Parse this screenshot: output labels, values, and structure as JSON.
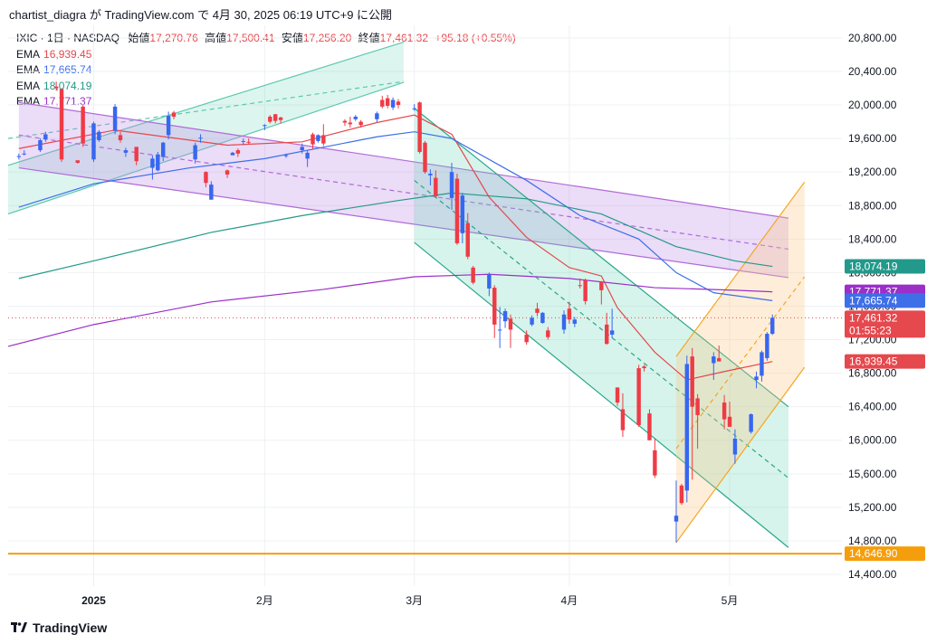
{
  "header": {
    "text": "chartist_diagra が TradingView.com で 4月 30, 2025 06:19 UTC+9 に公開"
  },
  "legend": {
    "symbol": "IXIC · 1日 · NASDAQ",
    "open_label": "始値",
    "open": "17,270.76",
    "high_label": "高値",
    "high": "17,500.41",
    "low_label": "安値",
    "low": "17,256.20",
    "close_label": "終値",
    "close": "17,461.32",
    "change": "+95.18 (+0.55%)",
    "ema_label": "EMA",
    "emas": [
      {
        "value": "16,939.45",
        "color": "#e5484d"
      },
      {
        "value": "17,665.74",
        "color": "#3d6fe8"
      },
      {
        "value": "18,074.19",
        "color": "#22998a"
      },
      {
        "value": "17,771.37",
        "color": "#9b2fc8"
      }
    ]
  },
  "footer": {
    "brand": "TradingView"
  },
  "chart_data": {
    "type": "candlestick",
    "symbol": "IXIC",
    "interval": "1日",
    "exchange": "NASDAQ",
    "y_ticks": [
      "20,800.00",
      "20,400.00",
      "20,000.00",
      "19,600.00",
      "19,200.00",
      "18,800.00",
      "18,400.00",
      "18,000.00",
      "17,600.00",
      "17,200.00",
      "16,800.00",
      "16,400.00",
      "16,000.00",
      "15,600.00",
      "15,200.00",
      "14,800.00",
      "14,400.00"
    ],
    "y_tick_values": [
      20800,
      20400,
      20000,
      19600,
      19200,
      18800,
      18400,
      18000,
      17600,
      17200,
      16800,
      16400,
      16000,
      15600,
      15200,
      14800,
      14400
    ],
    "ylim": [
      14260,
      20950
    ],
    "x_ticks": [
      {
        "label": "2025",
        "date": "2025-01-02",
        "bold": true
      },
      {
        "label": "2月",
        "date": "2025-02-03"
      },
      {
        "label": "3月",
        "date": "2025-03-03"
      },
      {
        "label": "4月",
        "date": "2025-04-01"
      },
      {
        "label": "5月",
        "date": "2025-05-01"
      }
    ],
    "xlim": [
      "2024-12-17",
      "2025-05-22"
    ],
    "candles": [
      [
        "2024-12-19",
        19380,
        19420,
        19350,
        19390
      ],
      [
        "2024-12-20",
        19410,
        19460,
        19400,
        19420
      ],
      [
        "2024-12-23",
        19460,
        19600,
        19440,
        19580
      ],
      [
        "2024-12-24",
        19590,
        19680,
        19560,
        19650
      ],
      [
        "2024-12-26",
        20220,
        20280,
        20170,
        20200
      ],
      [
        "2024-12-27",
        20190,
        20200,
        19320,
        19350
      ],
      [
        "2024-12-30",
        19340,
        19340,
        19300,
        19310
      ],
      [
        "2024-12-31",
        19980,
        20000,
        19500,
        19540
      ],
      [
        "2025-01-02",
        19350,
        19800,
        19320,
        19780
      ],
      [
        "2025-01-03",
        19580,
        19700,
        19560,
        19680
      ],
      [
        "2025-01-06",
        19690,
        20010,
        19650,
        19980
      ],
      [
        "2025-01-07",
        19640,
        19680,
        19550,
        19580
      ],
      [
        "2025-01-08",
        19430,
        19490,
        19380,
        19460
      ],
      [
        "2025-01-10",
        19500,
        19500,
        19280,
        19330
      ],
      [
        "2025-01-13",
        19250,
        19400,
        19110,
        19360
      ],
      [
        "2025-01-14",
        19220,
        19440,
        19210,
        19410
      ],
      [
        "2025-01-15",
        19380,
        19560,
        19330,
        19550
      ],
      [
        "2025-01-16",
        19640,
        19920,
        19590,
        19870
      ],
      [
        "2025-01-17",
        19910,
        19930,
        19830,
        19860
      ],
      [
        "2025-01-21",
        19350,
        19550,
        19300,
        19520
      ],
      [
        "2025-01-22",
        19600,
        19650,
        19550,
        19610
      ],
      [
        "2025-01-23",
        19200,
        19210,
        19020,
        19070
      ],
      [
        "2025-01-24",
        18870,
        19090,
        18880,
        19050
      ],
      [
        "2025-01-27",
        19220,
        19230,
        19130,
        19170
      ],
      [
        "2025-01-28",
        19400,
        19440,
        19400,
        19430
      ],
      [
        "2025-01-29",
        19460,
        19480,
        19380,
        19420
      ],
      [
        "2025-01-30",
        19560,
        19600,
        19520,
        19570
      ],
      [
        "2025-01-31",
        19560,
        19600,
        19530,
        19550
      ],
      [
        "2025-02-03",
        19760,
        19770,
        19700,
        19760
      ],
      [
        "2025-02-04",
        19860,
        19880,
        19780,
        19800
      ],
      [
        "2025-02-05",
        19890,
        19890,
        19780,
        19810
      ],
      [
        "2025-02-06",
        19850,
        19860,
        19780,
        19820
      ],
      [
        "2025-02-07",
        19390,
        19420,
        19370,
        19400
      ],
      [
        "2025-02-10",
        19460,
        19540,
        19420,
        19500
      ],
      [
        "2025-02-11",
        19360,
        19460,
        19260,
        19430
      ],
      [
        "2025-02-12",
        19650,
        19670,
        19470,
        19530
      ],
      [
        "2025-02-13",
        19570,
        19650,
        19550,
        19640
      ],
      [
        "2025-02-14",
        19640,
        19770,
        19510,
        19540
      ],
      [
        "2025-02-18",
        19810,
        19830,
        19750,
        19790
      ],
      [
        "2025-02-19",
        19790,
        19860,
        19730,
        19770
      ],
      [
        "2025-02-20",
        19830,
        19880,
        19810,
        19860
      ],
      [
        "2025-02-21",
        19800,
        19820,
        19730,
        19760
      ],
      [
        "2025-02-24",
        19830,
        19920,
        19790,
        19900
      ],
      [
        "2025-02-25",
        20060,
        20110,
        19960,
        19980
      ],
      [
        "2025-02-26",
        20080,
        20120,
        19960,
        19990
      ],
      [
        "2025-02-27",
        19970,
        20090,
        19940,
        20060
      ],
      [
        "2025-02-28",
        20040,
        20070,
        19960,
        20000
      ],
      [
        "2025-03-03",
        19950,
        20010,
        19930,
        19960
      ],
      [
        "2025-03-04",
        20030,
        20040,
        19420,
        19440
      ],
      [
        "2025-03-05",
        19550,
        19570,
        19180,
        19200
      ],
      [
        "2025-03-06",
        19160,
        19230,
        19040,
        19180
      ],
      [
        "2025-03-07",
        19130,
        19220,
        18890,
        18910
      ],
      [
        "2025-03-10",
        18890,
        19310,
        18750,
        19200
      ],
      [
        "2025-03-11",
        19120,
        19180,
        18330,
        18350
      ],
      [
        "2025-03-12",
        18470,
        18950,
        18350,
        18920
      ],
      [
        "2025-03-13",
        18590,
        18710,
        18160,
        18190
      ],
      [
        "2025-03-14",
        18060,
        18080,
        17860,
        17880
      ],
      [
        "2025-03-17",
        17810,
        18000,
        17720,
        17980
      ],
      [
        "2025-03-18",
        17820,
        17850,
        17220,
        17380
      ],
      [
        "2025-03-19",
        17310,
        17590,
        17100,
        17320
      ],
      [
        "2025-03-20",
        17420,
        17570,
        17340,
        17540
      ],
      [
        "2025-03-21",
        17450,
        17500,
        17100,
        17320
      ],
      [
        "2025-03-24",
        17260,
        17310,
        17140,
        17170
      ],
      [
        "2025-03-25",
        17380,
        17490,
        17360,
        17460
      ],
      [
        "2025-03-26",
        17570,
        17640,
        17480,
        17520
      ],
      [
        "2025-03-27",
        17400,
        17530,
        17390,
        17520
      ],
      [
        "2025-03-28",
        17310,
        17350,
        17200,
        17230
      ],
      [
        "2025-03-31",
        17320,
        17550,
        17270,
        17500
      ],
      [
        "2025-04-01",
        17570,
        17650,
        17390,
        17440
      ],
      [
        "2025-04-02",
        17390,
        17470,
        17350,
        17440
      ],
      [
        "2025-04-03",
        17850,
        17930,
        17810,
        17840
      ],
      [
        "2025-04-04",
        17910,
        17930,
        17620,
        17660
      ],
      [
        "2025-04-07",
        17890,
        17900,
        17620,
        17790
      ],
      [
        "2025-04-08",
        17380,
        17520,
        17140,
        17150
      ],
      [
        "2025-04-09",
        17260,
        17570,
        17220,
        17310
      ],
      [
        "2025-04-10",
        16630,
        16630,
        16410,
        16450
      ],
      [
        "2025-04-11",
        16370,
        16560,
        16040,
        16120
      ],
      [
        "2025-04-14",
        16860,
        16900,
        16160,
        16180
      ],
      [
        "2025-04-15",
        16880,
        16900,
        16820,
        16860
      ],
      [
        "2025-04-16",
        16320,
        16370,
        16000,
        16000
      ],
      [
        "2025-04-17",
        15880,
        16020,
        15550,
        15580
      ],
      [
        "2025-04-21",
        15030,
        15520,
        14780,
        15100
      ],
      [
        "2025-04-22",
        15460,
        15480,
        15230,
        15250
      ],
      [
        "2025-04-23",
        15400,
        17010,
        15260,
        16910
      ],
      [
        "2025-04-24",
        17000,
        17100,
        15530,
        16400
      ],
      [
        "2025-04-25",
        16500,
        16550,
        15900,
        16300
      ],
      [
        "2025-04-28",
        16920,
        17050,
        16720,
        17000
      ],
      [
        "2025-04-29",
        16980,
        17130,
        16940,
        16940
      ],
      [
        "2025-04-30",
        16450,
        16540,
        16130,
        16250
      ],
      [
        "2025-05-01",
        16280,
        16460,
        16170,
        16160
      ],
      [
        "2025-05-02",
        15830,
        16130,
        15720,
        16020
      ],
      [
        "2025-05-05",
        16100,
        16320,
        16080,
        16310
      ],
      [
        "2025-05-06",
        16720,
        16820,
        16620,
        16760
      ],
      [
        "2025-05-07",
        16770,
        17070,
        16700,
        17050
      ],
      [
        "2025-05-08",
        16980,
        17290,
        16950,
        17270
      ],
      [
        "2025-05-09",
        17270,
        17500,
        17256,
        17461
      ]
    ],
    "lines": [
      {
        "name": "EMA",
        "color": "#e5484d",
        "points": [
          [
            "2024-12-19",
            19480
          ],
          [
            "2025-01-06",
            19700
          ],
          [
            "2025-01-27",
            19520
          ],
          [
            "2025-02-10",
            19560
          ],
          [
            "2025-02-24",
            19790
          ],
          [
            "2025-03-03",
            19880
          ],
          [
            "2025-03-10",
            19650
          ],
          [
            "2025-03-17",
            18900
          ],
          [
            "2025-03-24",
            18420
          ],
          [
            "2025-04-01",
            18060
          ],
          [
            "2025-04-07",
            17960
          ],
          [
            "2025-04-10",
            17580
          ],
          [
            "2025-04-17",
            17050
          ],
          [
            "2025-04-23",
            16720
          ],
          [
            "2025-04-30",
            16820
          ],
          [
            "2025-05-09",
            16939
          ]
        ]
      },
      {
        "name": "EMA",
        "color": "#3d6fe8",
        "points": [
          [
            "2024-12-19",
            18780
          ],
          [
            "2025-01-02",
            19060
          ],
          [
            "2025-01-20",
            19250
          ],
          [
            "2025-02-03",
            19360
          ],
          [
            "2025-02-24",
            19620
          ],
          [
            "2025-03-03",
            19680
          ],
          [
            "2025-03-10",
            19600
          ],
          [
            "2025-03-24",
            19100
          ],
          [
            "2025-04-03",
            18680
          ],
          [
            "2025-04-14",
            18400
          ],
          [
            "2025-04-21",
            18000
          ],
          [
            "2025-04-28",
            17760
          ],
          [
            "2025-05-09",
            17666
          ]
        ]
      },
      {
        "name": "EMA",
        "color": "#22998a",
        "points": [
          [
            "2024-12-19",
            17930
          ],
          [
            "2025-01-02",
            18140
          ],
          [
            "2025-01-24",
            18480
          ],
          [
            "2025-02-10",
            18680
          ],
          [
            "2025-02-28",
            18860
          ],
          [
            "2025-03-10",
            18950
          ],
          [
            "2025-03-24",
            18880
          ],
          [
            "2025-04-07",
            18700
          ],
          [
            "2025-04-21",
            18310
          ],
          [
            "2025-05-02",
            18140
          ],
          [
            "2025-05-09",
            18074
          ]
        ]
      },
      {
        "name": "EMA",
        "color": "#9b2fc8",
        "points": [
          [
            "2024-12-17",
            17120
          ],
          [
            "2025-01-02",
            17380
          ],
          [
            "2025-01-24",
            17650
          ],
          [
            "2025-02-14",
            17800
          ],
          [
            "2025-03-03",
            17950
          ],
          [
            "2025-03-17",
            17980
          ],
          [
            "2025-04-01",
            17930
          ],
          [
            "2025-04-17",
            17820
          ],
          [
            "2025-05-02",
            17790
          ],
          [
            "2025-05-09",
            17771
          ]
        ]
      }
    ],
    "channels": [
      {
        "color": "#5cc9b0",
        "fill": "rgba(102,210,180,0.22)",
        "poly": [
          [
            "2024-12-17",
            19280
          ],
          [
            "2025-03-01",
            20750
          ],
          [
            "2025-03-01",
            20270
          ],
          [
            "2024-12-17",
            18700
          ]
        ],
        "mid": [
          [
            "2024-12-17",
            19600
          ],
          [
            "2025-03-01",
            20280
          ]
        ]
      },
      {
        "color": "#b06ad8",
        "fill": "rgba(190,140,230,0.30)",
        "poly": [
          [
            "2024-12-19",
            20030
          ],
          [
            "2025-05-12",
            18650
          ],
          [
            "2025-05-12",
            17940
          ],
          [
            "2024-12-19",
            19250
          ]
        ],
        "mid": [
          [
            "2024-12-19",
            19640
          ],
          [
            "2025-05-12",
            18280
          ]
        ]
      },
      {
        "color": "#2aa68c",
        "fill": "rgba(90,210,175,0.25)",
        "poly": [
          [
            "2025-03-03",
            19960
          ],
          [
            "2025-05-12",
            16400
          ],
          [
            "2025-05-12",
            14720
          ],
          [
            "2025-03-03",
            18360
          ]
        ],
        "mid": [
          [
            "2025-03-03",
            19100
          ],
          [
            "2025-05-12",
            15550
          ]
        ]
      },
      {
        "color": "#f5a623",
        "fill": "rgba(252,200,130,0.30)",
        "poly": [
          [
            "2025-04-21",
            17000
          ],
          [
            "2025-05-15",
            19080
          ],
          [
            "2025-05-15",
            16870
          ],
          [
            "2025-04-21",
            14780
          ]
        ],
        "mid": [
          [
            "2025-04-21",
            15900
          ],
          [
            "2025-05-15",
            17950
          ]
        ]
      }
    ],
    "hlines": [
      {
        "value": 17461.32,
        "color": "#e5484d",
        "style": "dotted"
      },
      {
        "value": 14646.9,
        "color": "#f59e0b",
        "style": "solid"
      }
    ],
    "price_tags": [
      {
        "text": "18,074.19",
        "value": 18074.19,
        "color": "#22998a"
      },
      {
        "text": "17,771.37",
        "value": 17771.37,
        "color": "#9b2fc8"
      },
      {
        "text": "17,665.74",
        "value": 17665.74,
        "color": "#3d6fe8"
      },
      {
        "text": "17,461.32",
        "sub": "01:55:23",
        "value": 17461.32,
        "color": "#e5484d"
      },
      {
        "text": "16,939.45",
        "value": 16939.45,
        "color": "#e5484d"
      },
      {
        "text": "14,646.90",
        "value": 14646.9,
        "color": "#f59e0b",
        "textcolor": "#131722"
      }
    ]
  }
}
